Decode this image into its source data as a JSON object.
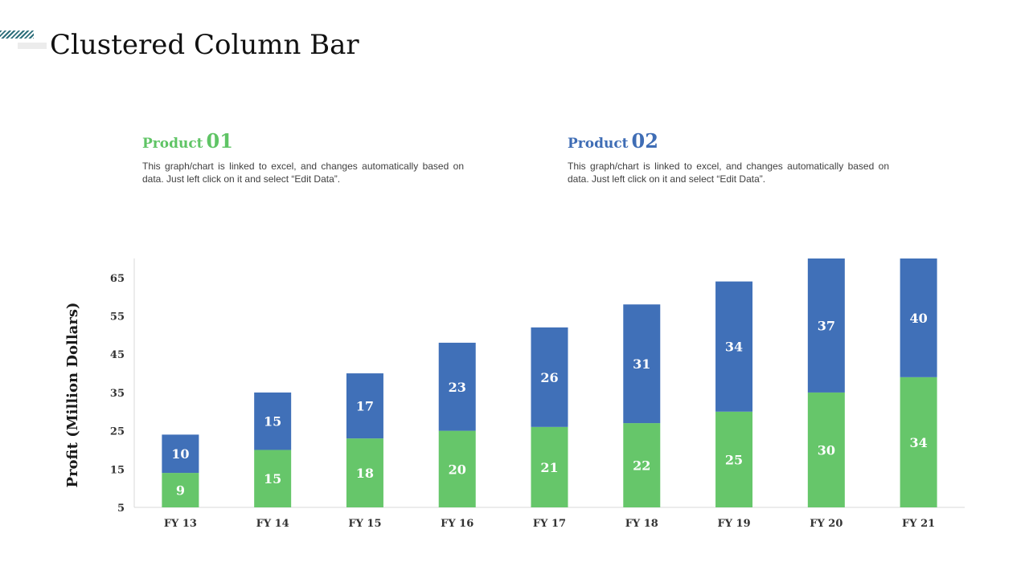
{
  "page": {
    "title": "Clustered Column Bar"
  },
  "products": [
    {
      "label": "Product",
      "number": "01",
      "color": "#5fc465",
      "description": "This graph/chart is linked to excel, and changes automatically based on data. Just left click on it and select “Edit Data”."
    },
    {
      "label": "Product",
      "number": "02",
      "color": "#3f6db5",
      "description": "This graph/chart is linked to excel, and changes automatically based on data. Just left click on it and select “Edit Data”."
    }
  ],
  "chart_data": {
    "type": "bar",
    "stacked": true,
    "title": "",
    "xlabel": "",
    "ylabel": "Profit  (Million Dollars)",
    "categories": [
      "FY 13",
      "FY 14",
      "FY 15",
      "FY 16",
      "FY 17",
      "FY 18",
      "FY 19",
      "FY 20",
      "FY 21"
    ],
    "series": [
      {
        "name": "Product 01",
        "color": "#66c66a",
        "values": [
          9,
          15,
          18,
          20,
          21,
          22,
          25,
          30,
          34
        ]
      },
      {
        "name": "Product 02",
        "color": "#4070b8",
        "values": [
          10,
          15,
          17,
          23,
          26,
          31,
          34,
          37,
          40
        ]
      }
    ],
    "yticks": [
      5,
      15,
      25,
      35,
      45,
      55,
      65
    ],
    "ylim": [
      5,
      70
    ],
    "grid": false,
    "data_labels": true
  }
}
